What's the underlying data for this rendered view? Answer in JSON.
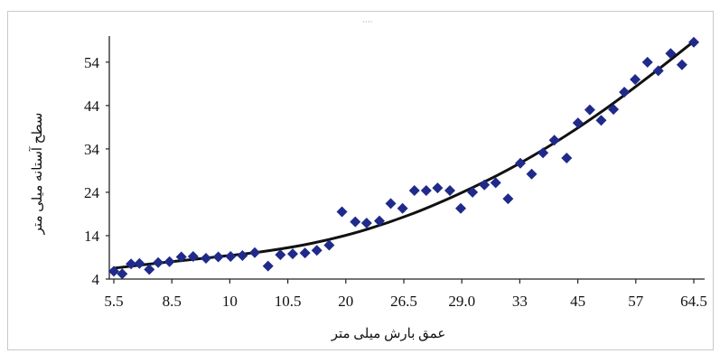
{
  "chart_data": {
    "type": "scatter",
    "title": "",
    "xlabel": "عمق بارش میلی متر",
    "ylabel": "سطح آستانه میلی متر",
    "x_tick_labels": [
      "5.5",
      "8.5",
      "10",
      "10.5",
      "20",
      "26.5",
      "29.0",
      "33",
      "45",
      "57",
      "64.5"
    ],
    "y_ticks": [
      4,
      14,
      24,
      34,
      44,
      54
    ],
    "ylim": [
      4,
      60
    ],
    "grid": false,
    "legend": "none",
    "marker": "diamond",
    "marker_color": "#1f2a8a",
    "trendline_color": "#111111",
    "x_note": "category-like axis; point x given as index on a 0-10 scale where tick labels sit at integer positions",
    "series": [
      {
        "points": [
          [
            0.0,
            5.8
          ],
          [
            0.17,
            5.2
          ],
          [
            0.35,
            7.5
          ],
          [
            0.52,
            7.6
          ],
          [
            0.72,
            6.2
          ],
          [
            0.9,
            7.8
          ],
          [
            1.13,
            8.0
          ],
          [
            1.37,
            9.1
          ],
          [
            1.61,
            9.2
          ],
          [
            1.87,
            8.8
          ],
          [
            2.12,
            9.1
          ],
          [
            2.37,
            9.2
          ],
          [
            2.61,
            9.4
          ],
          [
            2.86,
            10.1
          ],
          [
            3.13,
            7.0
          ],
          [
            3.38,
            9.6
          ],
          [
            3.63,
            9.8
          ],
          [
            3.88,
            10.0
          ],
          [
            4.12,
            10.6
          ],
          [
            4.37,
            11.8
          ],
          [
            4.63,
            19.5
          ],
          [
            4.9,
            17.2
          ],
          [
            5.13,
            16.9
          ],
          [
            5.39,
            17.4
          ],
          [
            5.62,
            21.4
          ],
          [
            5.86,
            20.3
          ],
          [
            6.1,
            24.4
          ],
          [
            6.34,
            24.4
          ],
          [
            6.57,
            25.0
          ],
          [
            6.82,
            24.4
          ],
          [
            7.04,
            20.3
          ],
          [
            7.28,
            24.0
          ],
          [
            7.52,
            25.7
          ],
          [
            7.75,
            26.2
          ],
          [
            8.0,
            22.5
          ],
          [
            8.25,
            30.7
          ],
          [
            8.48,
            28.2
          ],
          [
            8.71,
            33.1
          ],
          [
            8.94,
            36.0
          ],
          [
            9.19,
            31.9
          ],
          [
            9.42,
            40.0
          ],
          [
            9.66,
            43.0
          ],
          [
            9.89,
            40.6
          ],
          [
            10.14,
            43.1
          ],
          [
            10.36,
            47.1
          ],
          [
            10.58,
            50.0
          ],
          [
            10.83,
            54.0
          ],
          [
            11.05,
            52.0
          ],
          [
            11.3,
            56.0
          ],
          [
            11.53,
            53.4
          ],
          [
            11.77,
            58.6
          ]
        ]
      }
    ],
    "trendline": [
      [
        0.0,
        6.5
      ],
      [
        1.0,
        7.8
      ],
      [
        2.0,
        9.0
      ],
      [
        3.0,
        10.3
      ],
      [
        4.0,
        12.2
      ],
      [
        5.0,
        15.0
      ],
      [
        6.0,
        18.8
      ],
      [
        7.0,
        23.6
      ],
      [
        8.0,
        29.2
      ],
      [
        9.0,
        35.8
      ],
      [
        10.0,
        43.4
      ],
      [
        11.0,
        51.9
      ],
      [
        11.77,
        58.8
      ]
    ]
  }
}
